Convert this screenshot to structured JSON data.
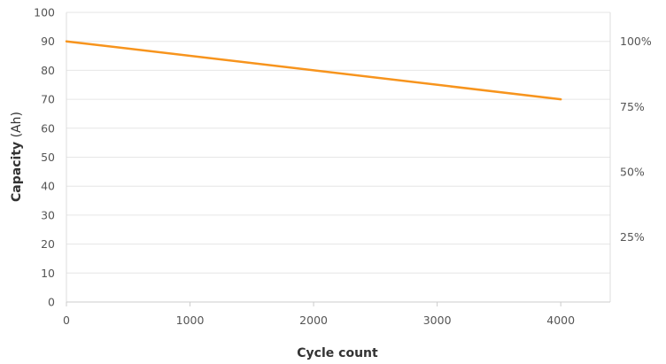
{
  "chart_data": {
    "type": "line",
    "xlabel": "Cycle count",
    "ylabel": {
      "bold": "Capacity",
      "unit": " (Ah)"
    },
    "xlim": [
      0,
      4400
    ],
    "ylim": [
      0,
      100
    ],
    "x_ticks": [
      0,
      1000,
      2000,
      3000,
      4000
    ],
    "x_tick_labels": [
      "0",
      "1000",
      "2000",
      "3000",
      "4000"
    ],
    "y_ticks": [
      0,
      10,
      20,
      30,
      40,
      50,
      60,
      70,
      80,
      90,
      100
    ],
    "y_tick_labels": [
      "0",
      "10",
      "20",
      "30",
      "40",
      "50",
      "60",
      "70",
      "80",
      "90",
      "100"
    ],
    "y2_ticks": [
      {
        "value": 90,
        "label": "100%"
      },
      {
        "value": 67.5,
        "label": "75%"
      },
      {
        "value": 45,
        "label": "50%"
      },
      {
        "value": 22.5,
        "label": "25%"
      }
    ],
    "grid": "horizontal",
    "series": [
      {
        "x": [
          0,
          4000
        ],
        "y": [
          90,
          70
        ],
        "color": "#f7941d"
      }
    ]
  }
}
